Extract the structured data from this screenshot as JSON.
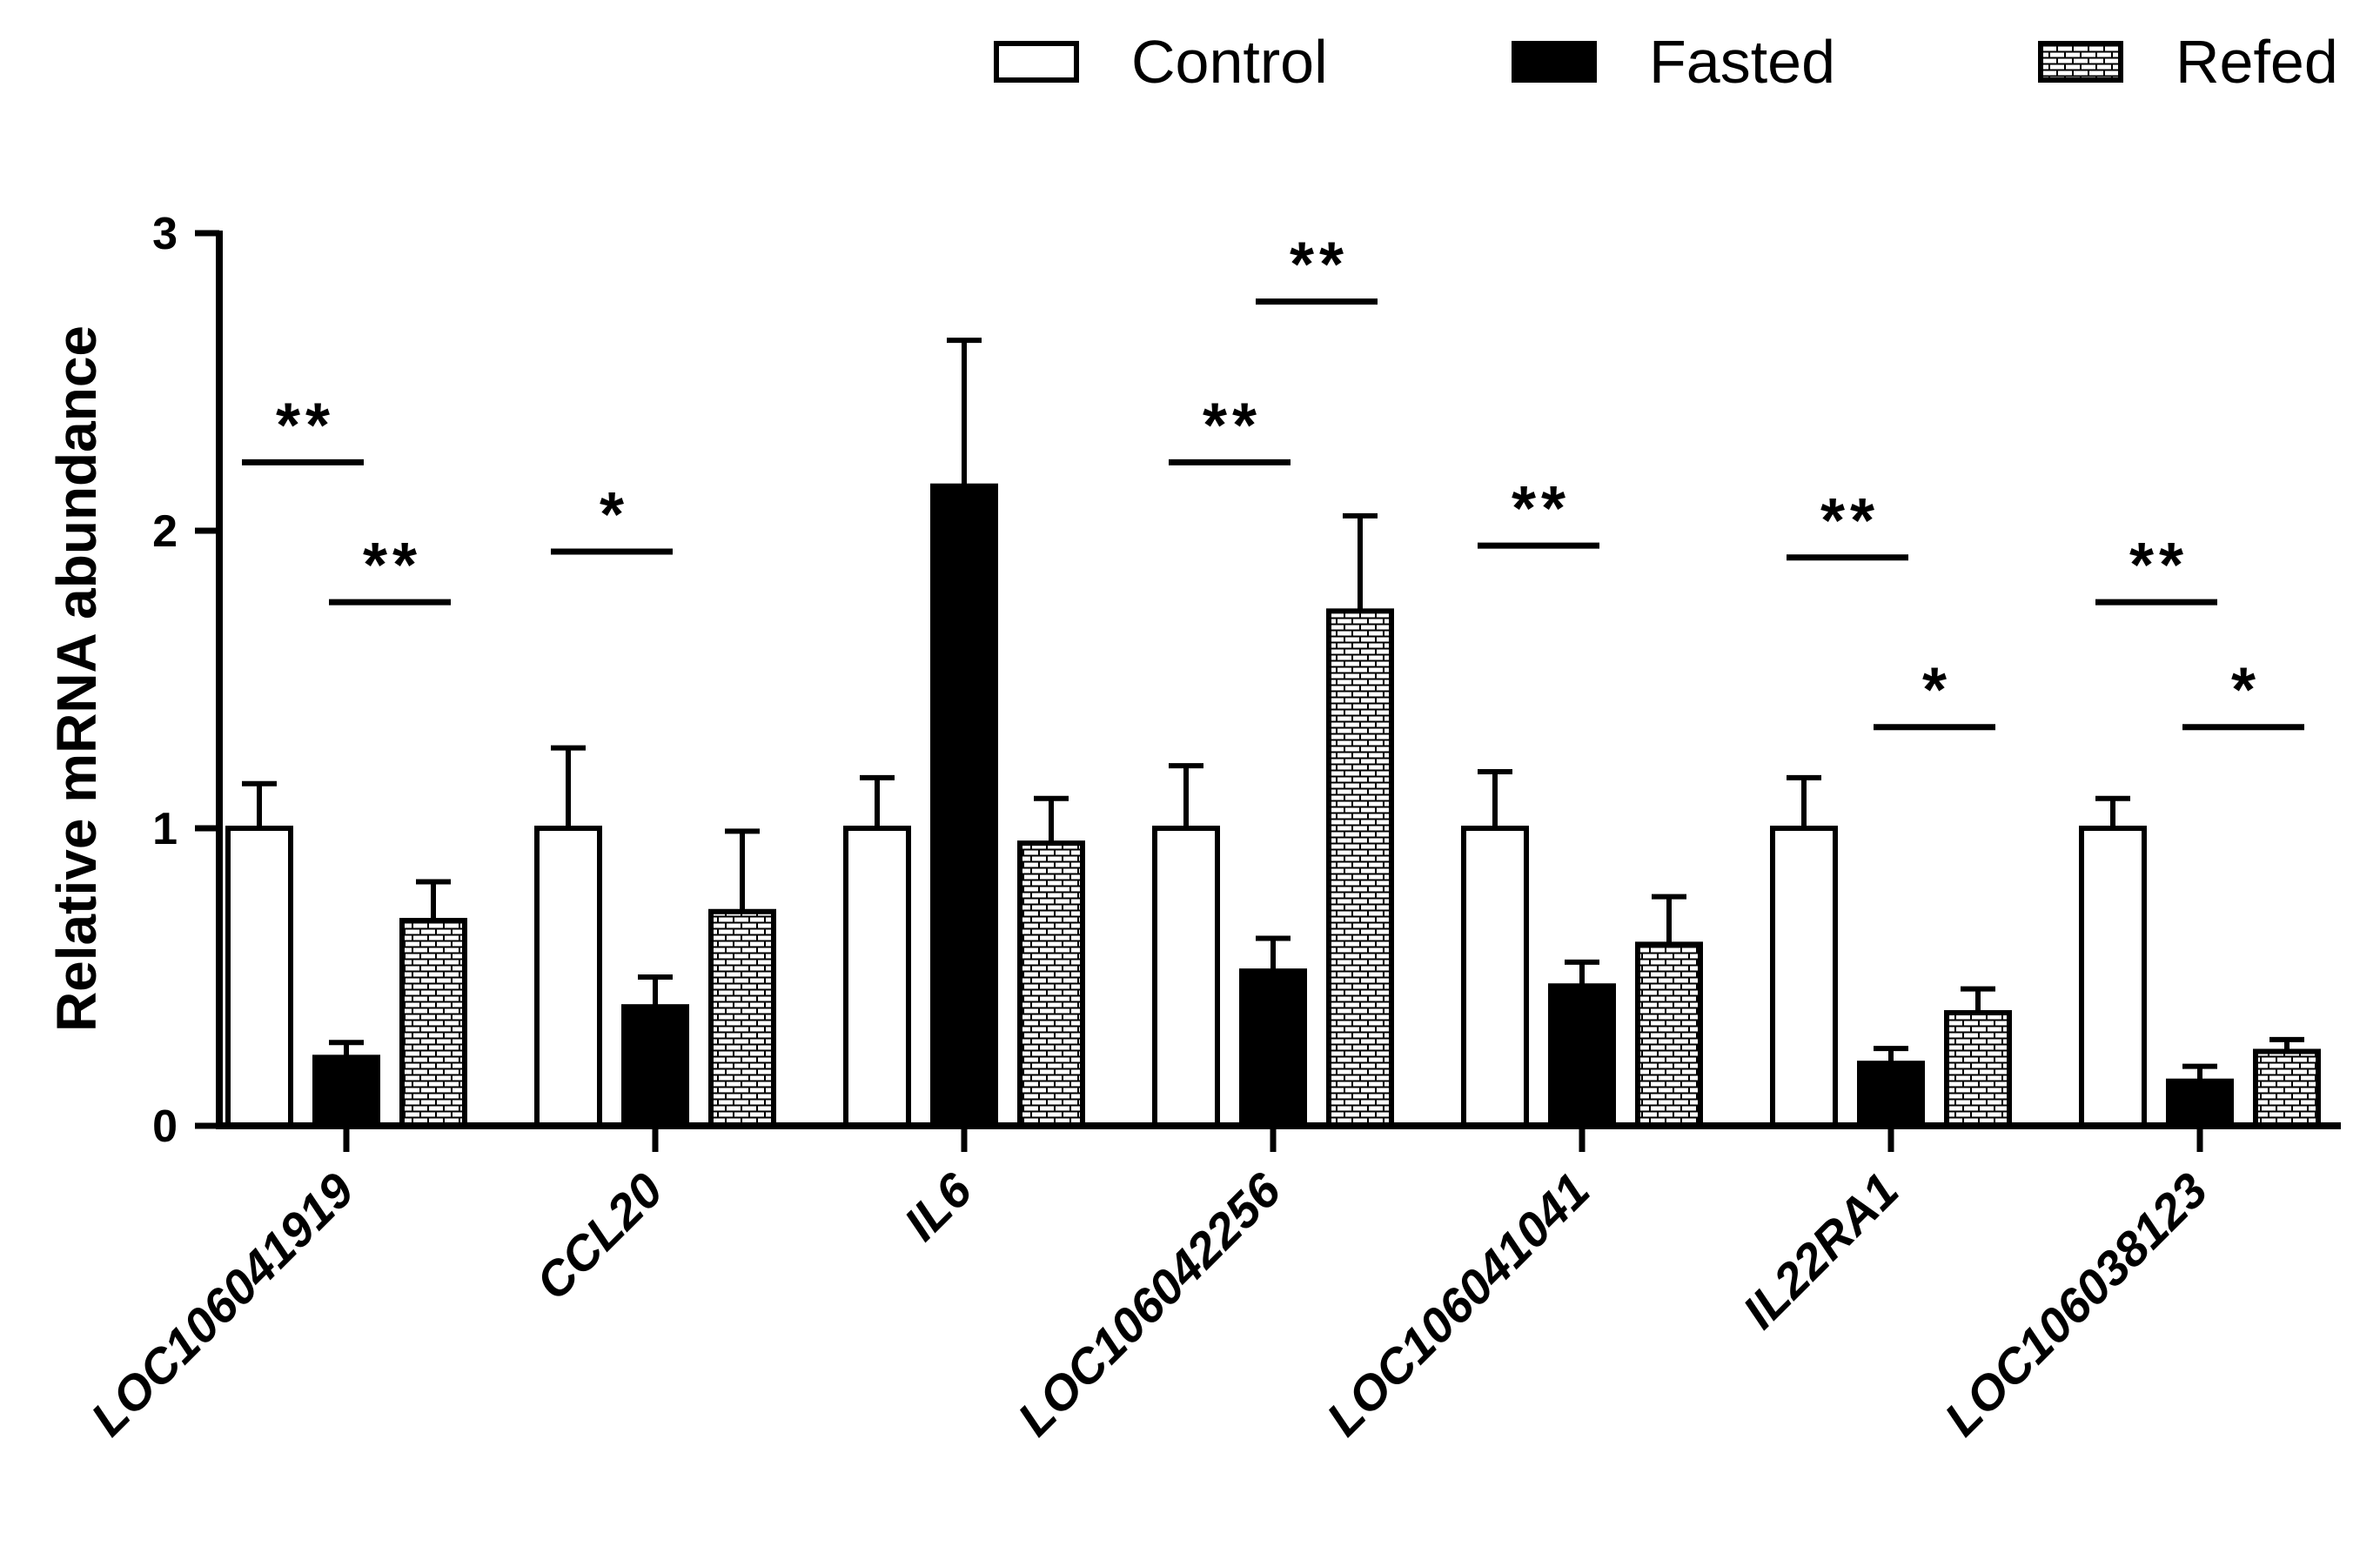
{
  "chart_data": {
    "type": "bar",
    "ylabel": "Relative mRNA abundance",
    "ylim": [
      0,
      3
    ],
    "yticks": [
      0,
      1,
      2,
      3
    ],
    "categories": [
      "LOC106041919",
      "CCL20",
      "IL6",
      "LOC106042256",
      "LOC106041041",
      "IL22RA1",
      "LOC106038123"
    ],
    "series": [
      {
        "name": "Control",
        "values": [
          1.0,
          1.0,
          1.0,
          1.0,
          1.0,
          1.0,
          1.0
        ],
        "errors": [
          0.15,
          0.27,
          0.17,
          0.21,
          0.19,
          0.17,
          0.1
        ],
        "style": "open",
        "color": "#ffffff"
      },
      {
        "name": "Fasted",
        "values": [
          0.23,
          0.4,
          2.15,
          0.52,
          0.47,
          0.21,
          0.15
        ],
        "errors": [
          0.05,
          0.1,
          0.49,
          0.11,
          0.08,
          0.05,
          0.05
        ],
        "style": "solid",
        "color": "#000000"
      },
      {
        "name": "Refed",
        "values": [
          0.69,
          0.72,
          0.95,
          1.73,
          0.61,
          0.38,
          0.25
        ],
        "errors": [
          0.13,
          0.27,
          0.15,
          0.32,
          0.16,
          0.08,
          0.04
        ],
        "style": "brick",
        "color": "#ffffff"
      }
    ],
    "significance": [
      {
        "category": 0,
        "from": 0,
        "to": 1,
        "label": "**",
        "y": 2.23
      },
      {
        "category": 0,
        "from": 1,
        "to": 2,
        "label": "**",
        "y": 1.76
      },
      {
        "category": 1,
        "from": 0,
        "to": 1,
        "label": "*",
        "y": 1.93
      },
      {
        "category": 3,
        "from": 0,
        "to": 1,
        "label": "**",
        "y": 2.23
      },
      {
        "category": 3,
        "from": 1,
        "to": 2,
        "label": "**",
        "y": 2.77
      },
      {
        "category": 4,
        "from": 0,
        "to": 1,
        "label": "**",
        "y": 1.95
      },
      {
        "category": 5,
        "from": 0,
        "to": 1,
        "label": "**",
        "y": 1.91
      },
      {
        "category": 5,
        "from": 1,
        "to": 2,
        "label": "*",
        "y": 1.34
      },
      {
        "category": 6,
        "from": 0,
        "to": 1,
        "label": "**",
        "y": 1.76
      },
      {
        "category": 6,
        "from": 1,
        "to": 2,
        "label": "*",
        "y": 1.34
      }
    ],
    "legend": {
      "position": "top-right"
    },
    "grid": false
  }
}
